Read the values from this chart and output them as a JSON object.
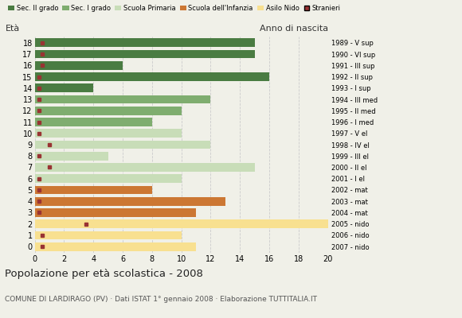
{
  "ages": [
    18,
    17,
    16,
    15,
    14,
    13,
    12,
    11,
    10,
    9,
    8,
    7,
    6,
    5,
    4,
    3,
    2,
    1,
    0
  ],
  "values": [
    15,
    15,
    6,
    16,
    4,
    12,
    10,
    8,
    10,
    12,
    5,
    15,
    10,
    8,
    13,
    11,
    20,
    10,
    11
  ],
  "stranieri_x": [
    0.5,
    0.5,
    0.5,
    0.3,
    0.3,
    0.3,
    0.3,
    0.3,
    0.3,
    1.0,
    0.3,
    1.0,
    0.3,
    0.3,
    0.3,
    0.3,
    3.5,
    0.5,
    0.5
  ],
  "stranieri_show": [
    1,
    1,
    1,
    1,
    1,
    1,
    1,
    1,
    1,
    1,
    1,
    1,
    1,
    1,
    1,
    1,
    1,
    1,
    1
  ],
  "bar_colors": [
    "#4a7c42",
    "#4a7c42",
    "#4a7c42",
    "#4a7c42",
    "#4a7c42",
    "#7fad6f",
    "#7fad6f",
    "#7fad6f",
    "#c8ddb8",
    "#c8ddb8",
    "#c8ddb8",
    "#c8ddb8",
    "#c8ddb8",
    "#cc7733",
    "#cc7733",
    "#cc7733",
    "#f8e090",
    "#f8e090",
    "#f8e090"
  ],
  "right_labels": [
    "1989 - V sup",
    "1990 - VI sup",
    "1991 - III sup",
    "1992 - II sup",
    "1993 - I sup",
    "1994 - III med",
    "1995 - II med",
    "1996 - I med",
    "1997 - V el",
    "1998 - IV el",
    "1999 - III el",
    "2000 - II el",
    "2001 - I el",
    "2002 - mat",
    "2003 - mat",
    "2004 - mat",
    "2005 - nido",
    "2006 - nido",
    "2007 - nido"
  ],
  "legend_labels": [
    "Sec. II grado",
    "Sec. I grado",
    "Scuola Primaria",
    "Scuola dell'Infanzia",
    "Asilo Nido",
    "Stranieri"
  ],
  "legend_colors": [
    "#4a7c42",
    "#7fad6f",
    "#c8ddb8",
    "#cc7733",
    "#f8e090",
    "#aa2222"
  ],
  "title": "Popolazione per età scolastica - 2008",
  "subtitle": "COMUNE DI LARDIRAGO (PV) · Dati ISTAT 1° gennaio 2008 · Elaborazione TUTTITALIA.IT",
  "xlabel_left": "Età",
  "xlabel_right": "Anno di nascita",
  "xlim": [
    0,
    20
  ],
  "xticks": [
    0,
    2,
    4,
    6,
    8,
    10,
    12,
    14,
    16,
    18,
    20
  ],
  "bg_color": "#f0f0e8",
  "bar_height": 0.75,
  "stranieri_color": "#993333",
  "stranieri_size": 3.5
}
